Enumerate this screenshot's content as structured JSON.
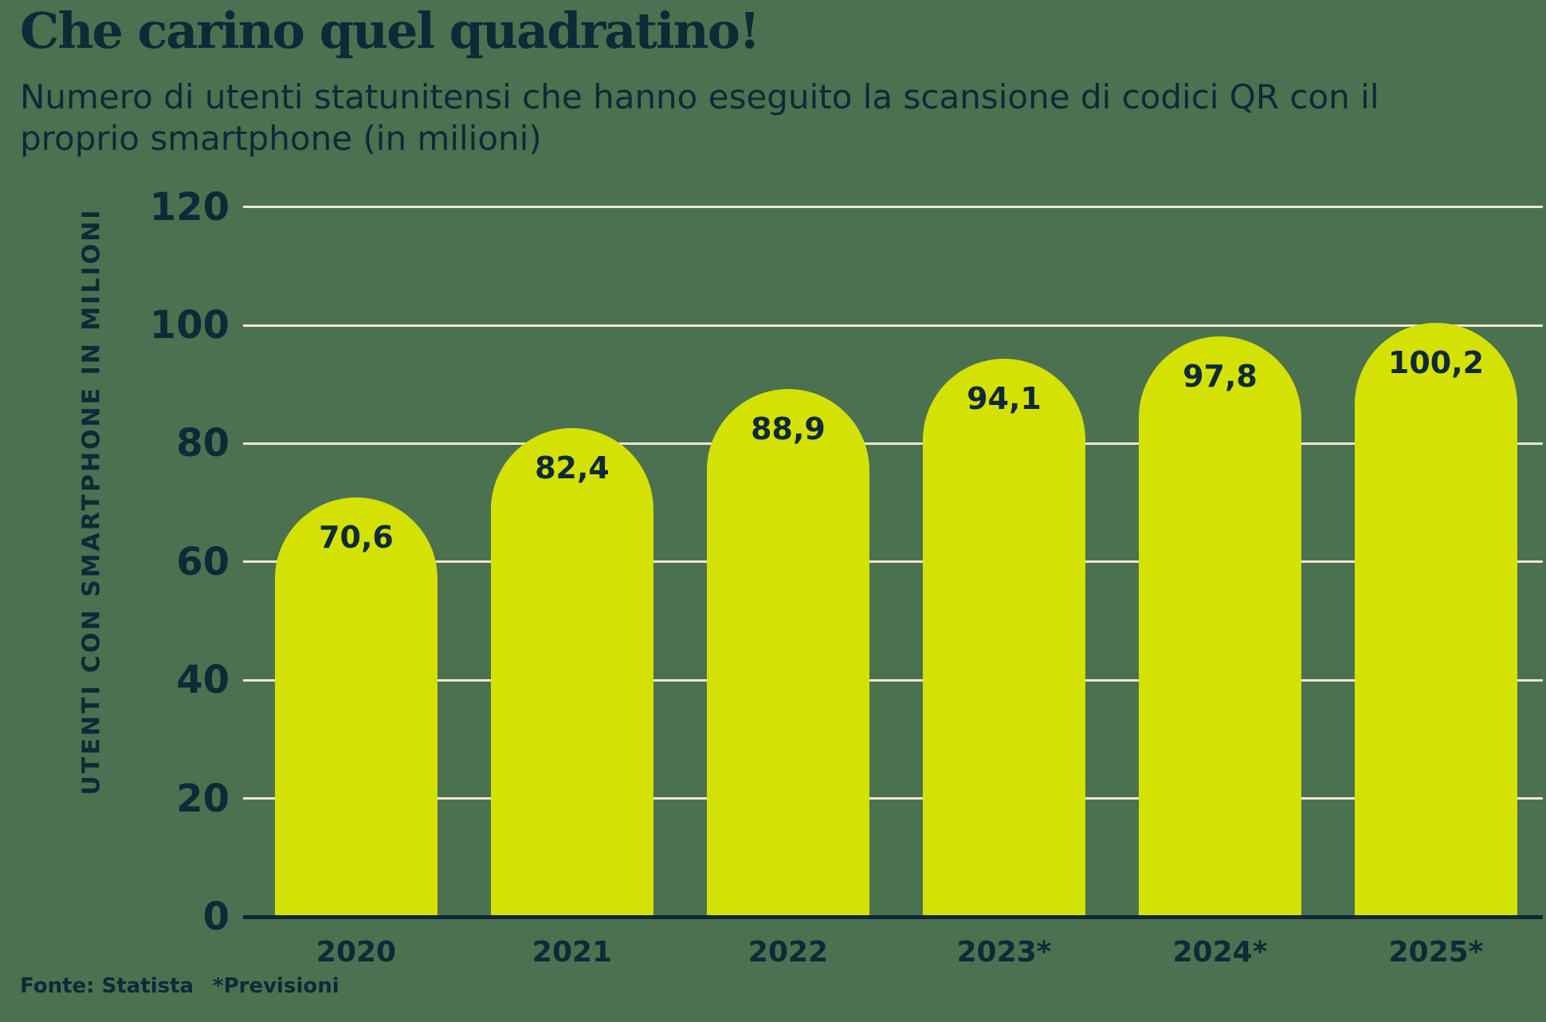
{
  "title": "Che carino quel quadratino!",
  "subtitle_lines": [
    "Numero di utenti statunitensi che hanno eseguito la scansione di codici QR con il",
    "proprio smartphone (in milioni)"
  ],
  "footer": {
    "source": "Fonte: Statista",
    "note": "*Previsioni"
  },
  "colors": {
    "background": "#4b7150",
    "bar": "#d4e104",
    "gridline": "#efe8cc",
    "text": "#0f2937"
  },
  "chart_data": {
    "type": "bar",
    "title": "Che carino quel quadratino!",
    "subtitle": "Numero di utenti statunitensi che hanno eseguito la scansione di codici QR con il proprio smartphone (in milioni)",
    "categories": [
      "2020",
      "2021",
      "2022",
      "2023*",
      "2024*",
      "2025*"
    ],
    "values": [
      70.6,
      82.4,
      88.9,
      94.1,
      97.8,
      100.2
    ],
    "value_labels": [
      "70,6",
      "82,4",
      "88,9",
      "94,1",
      "97,8",
      "100,2"
    ],
    "xlabel": "",
    "ylabel": "UTENTI CON SMARTPHONE IN MILIONI",
    "ylim": [
      0,
      120
    ],
    "yticks": [
      0,
      20,
      40,
      60,
      80,
      100,
      120
    ],
    "grid": true,
    "legend": false,
    "bar_style": "rounded-top",
    "source": "Fonte: Statista",
    "note": "*Previsioni"
  }
}
